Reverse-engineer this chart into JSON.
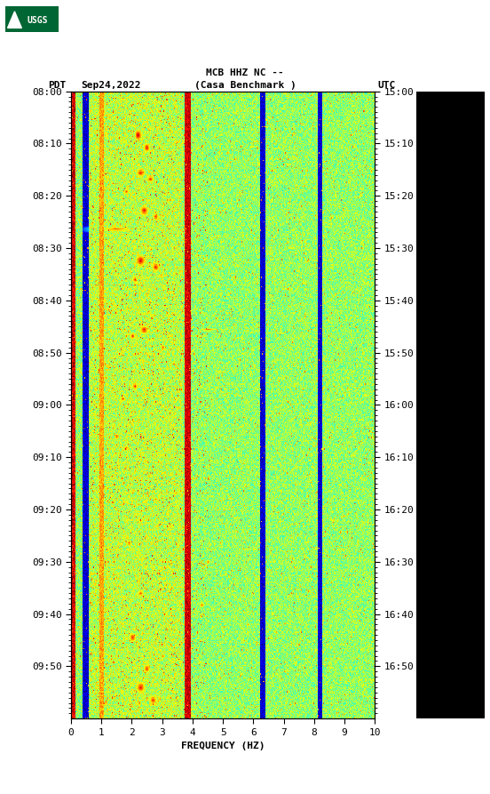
{
  "title_line1": "MCB HHZ NC --",
  "title_line2": "(Casa Benchmark )",
  "label_left": "PDT",
  "label_date": "Sep24,2022",
  "label_right": "UTC",
  "time_left": [
    "08:00",
    "08:10",
    "08:20",
    "08:30",
    "08:40",
    "08:50",
    "09:00",
    "09:10",
    "09:20",
    "09:30",
    "09:40",
    "09:50"
  ],
  "time_right": [
    "15:00",
    "15:10",
    "15:20",
    "15:30",
    "15:40",
    "15:50",
    "16:00",
    "16:10",
    "16:20",
    "16:30",
    "16:40",
    "16:50"
  ],
  "freq_ticks": [
    0,
    1,
    2,
    3,
    4,
    5,
    6,
    7,
    8,
    9,
    10
  ],
  "xlabel": "FREQUENCY (HZ)",
  "background_color": "#ffffff",
  "right_panel_color": "#000000",
  "fig_width": 5.52,
  "fig_height": 8.93,
  "dpi": 100,
  "n_time": 600,
  "n_freq": 350,
  "seed": 1234
}
